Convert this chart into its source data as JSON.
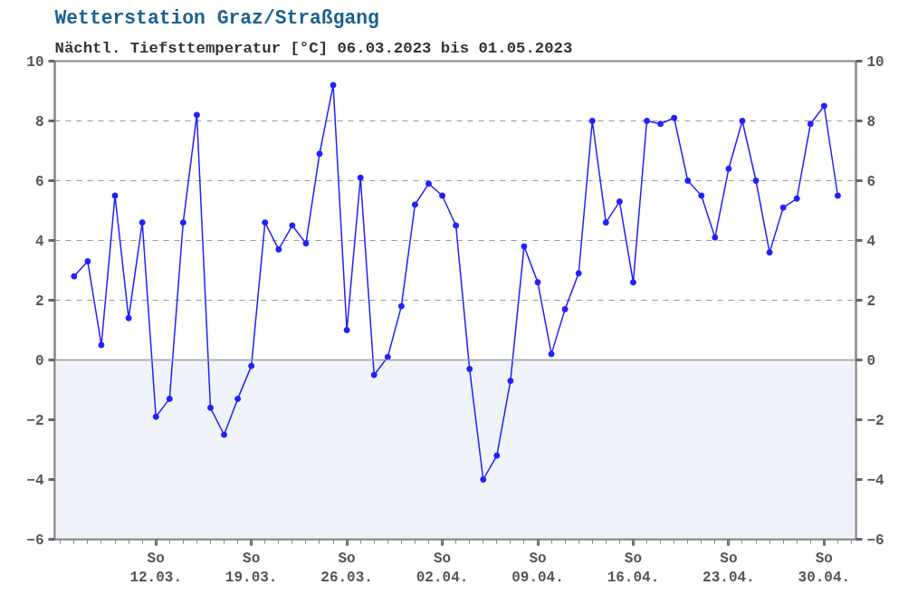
{
  "chart_data": {
    "type": "line",
    "title": "Wetterstation Graz/Straßgang",
    "subtitle": "Nächtl. Tiefsttemperatur [°C] 06.03.2023 bis 01.05.2023",
    "x": [
      "2023-03-06",
      "2023-03-07",
      "2023-03-08",
      "2023-03-09",
      "2023-03-10",
      "2023-03-11",
      "2023-03-12",
      "2023-03-13",
      "2023-03-14",
      "2023-03-15",
      "2023-03-16",
      "2023-03-17",
      "2023-03-18",
      "2023-03-19",
      "2023-03-20",
      "2023-03-21",
      "2023-03-22",
      "2023-03-23",
      "2023-03-24",
      "2023-03-25",
      "2023-03-26",
      "2023-03-27",
      "2023-03-28",
      "2023-03-29",
      "2023-03-30",
      "2023-03-31",
      "2023-04-01",
      "2023-04-02",
      "2023-04-03",
      "2023-04-04",
      "2023-04-05",
      "2023-04-06",
      "2023-04-07",
      "2023-04-08",
      "2023-04-09",
      "2023-04-10",
      "2023-04-11",
      "2023-04-12",
      "2023-04-13",
      "2023-04-14",
      "2023-04-15",
      "2023-04-16",
      "2023-04-17",
      "2023-04-18",
      "2023-04-19",
      "2023-04-20",
      "2023-04-21",
      "2023-04-22",
      "2023-04-23",
      "2023-04-24",
      "2023-04-25",
      "2023-04-26",
      "2023-04-27",
      "2023-04-28",
      "2023-04-29",
      "2023-04-30",
      "2023-05-01"
    ],
    "series": [
      {
        "color": "#2020ff",
        "values": [
          2.8,
          3.3,
          0.5,
          5.5,
          1.4,
          4.6,
          -1.9,
          -1.3,
          4.6,
          8.2,
          -1.6,
          -2.5,
          -1.3,
          -0.2,
          4.6,
          3.7,
          4.5,
          3.9,
          6.9,
          9.2,
          1.0,
          6.1,
          -0.5,
          0.1,
          1.8,
          5.2,
          5.9,
          5.5,
          4.5,
          -0.3,
          -4.0,
          -3.2,
          -0.7,
          3.8,
          2.6,
          0.2,
          1.7,
          2.9,
          8.0,
          4.6,
          5.3,
          2.6,
          8.0,
          7.9,
          8.1,
          6.0,
          5.5,
          4.1,
          6.4,
          8.0,
          6.0,
          3.6,
          5.1,
          5.4,
          7.9,
          8.5,
          5.5
        ]
      }
    ],
    "xlim": [
      "2023-03-04T14:00",
      "2023-05-02T08:00"
    ],
    "xticks": [
      {
        "value": "2023-03-12",
        "label": "So\n12.03."
      },
      {
        "value": "2023-03-19",
        "label": "So\n19.03."
      },
      {
        "value": "2023-03-26",
        "label": "So\n26.03."
      },
      {
        "value": "2023-04-02",
        "label": "So\n02.04."
      },
      {
        "value": "2023-04-09",
        "label": "So\n09.04."
      },
      {
        "value": "2023-04-16",
        "label": "So\n16.04."
      },
      {
        "value": "2023-04-23",
        "label": "So\n23.04."
      },
      {
        "value": "2023-04-30",
        "label": "So\n30.04."
      }
    ],
    "ylim": [
      -6,
      10
    ],
    "yticks": [
      -6,
      -4,
      -2,
      0,
      2,
      4,
      6,
      8,
      10
    ],
    "y2lim": [
      -6,
      10
    ],
    "y2ticks": [
      -6,
      -4,
      -2,
      0,
      2,
      4,
      6,
      8,
      10
    ],
    "grid": "y",
    "marker": "circle",
    "line_style": "solid",
    "bands": [
      {
        "axis": "y",
        "from": -6,
        "to": 0,
        "color": "#f0f4fa"
      }
    ],
    "ref_lines": [
      {
        "axis": "y",
        "value": 0,
        "color": "#999999"
      }
    ]
  }
}
